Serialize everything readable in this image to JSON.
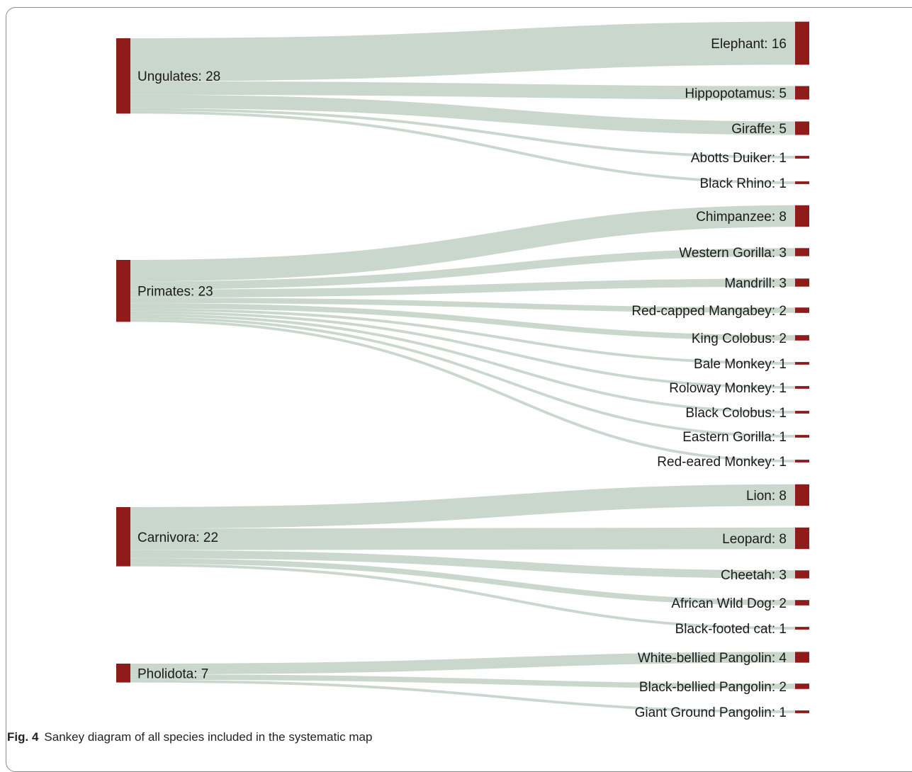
{
  "colors": {
    "node": "#8f1b1b",
    "link": "#c7d5c9"
  },
  "caption": {
    "label": "Fig. 4",
    "text": "Sankey diagram of all species included in the systematic map"
  },
  "chart_data": {
    "type": "sankey",
    "sources": [
      {
        "name": "Ungulates",
        "value": 28,
        "label": "Ungulates: 28"
      },
      {
        "name": "Primates",
        "value": 23,
        "label": "Primates: 23"
      },
      {
        "name": "Carnivora",
        "value": 22,
        "label": "Carnivora: 22"
      },
      {
        "name": "Pholidota",
        "value": 7,
        "label": "Pholidota: 7"
      }
    ],
    "targets": [
      {
        "name": "Elephant",
        "value": 16,
        "label": "Elephant: 16",
        "source": "Ungulates"
      },
      {
        "name": "Hippopotamus",
        "value": 5,
        "label": "Hippopotamus: 5",
        "source": "Ungulates"
      },
      {
        "name": "Giraffe",
        "value": 5,
        "label": "Giraffe: 5",
        "source": "Ungulates"
      },
      {
        "name": "Abotts Duiker",
        "value": 1,
        "label": "Abotts Duiker: 1",
        "source": "Ungulates"
      },
      {
        "name": "Black Rhino",
        "value": 1,
        "label": "Black Rhino: 1",
        "source": "Ungulates"
      },
      {
        "name": "Chimpanzee",
        "value": 8,
        "label": "Chimpanzee: 8",
        "source": "Primates"
      },
      {
        "name": "Western Gorilla",
        "value": 3,
        "label": "Western Gorilla: 3",
        "source": "Primates"
      },
      {
        "name": "Mandrill",
        "value": 3,
        "label": "Mandrill: 3",
        "source": "Primates"
      },
      {
        "name": "Red-capped Mangabey",
        "value": 2,
        "label": "Red-capped Mangabey: 2",
        "source": "Primates"
      },
      {
        "name": "King Colobus",
        "value": 2,
        "label": "King Colobus: 2",
        "source": "Primates"
      },
      {
        "name": "Bale Monkey",
        "value": 1,
        "label": "Bale Monkey: 1",
        "source": "Primates"
      },
      {
        "name": "Roloway Monkey",
        "value": 1,
        "label": "Roloway Monkey: 1",
        "source": "Primates"
      },
      {
        "name": "Black Colobus",
        "value": 1,
        "label": "Black Colobus: 1",
        "source": "Primates"
      },
      {
        "name": "Eastern Gorilla",
        "value": 1,
        "label": "Eastern Gorilla: 1",
        "source": "Primates"
      },
      {
        "name": "Red-eared Monkey",
        "value": 1,
        "label": "Red-eared Monkey: 1",
        "source": "Primates"
      },
      {
        "name": "Lion",
        "value": 8,
        "label": "Lion: 8",
        "source": "Carnivora"
      },
      {
        "name": "Leopard",
        "value": 8,
        "label": "Leopard: 8",
        "source": "Carnivora"
      },
      {
        "name": "Cheetah",
        "value": 3,
        "label": "Cheetah: 3",
        "source": "Carnivora"
      },
      {
        "name": "African Wild Dog",
        "value": 2,
        "label": "African Wild Dog: 2",
        "source": "Carnivora"
      },
      {
        "name": "Black-footed cat",
        "value": 1,
        "label": "Black-footed cat: 1",
        "source": "Carnivora"
      },
      {
        "name": "White-bellied Pangolin",
        "value": 4,
        "label": "White-bellied Pangolin: 4",
        "source": "Pholidota"
      },
      {
        "name": "Black-bellied Pangolin",
        "value": 2,
        "label": "Black-bellied Pangolin: 2",
        "source": "Pholidota"
      },
      {
        "name": "Giant Ground Pangolin",
        "value": 1,
        "label": "Giant Ground Pangolin: 1",
        "source": "Pholidota"
      }
    ]
  }
}
